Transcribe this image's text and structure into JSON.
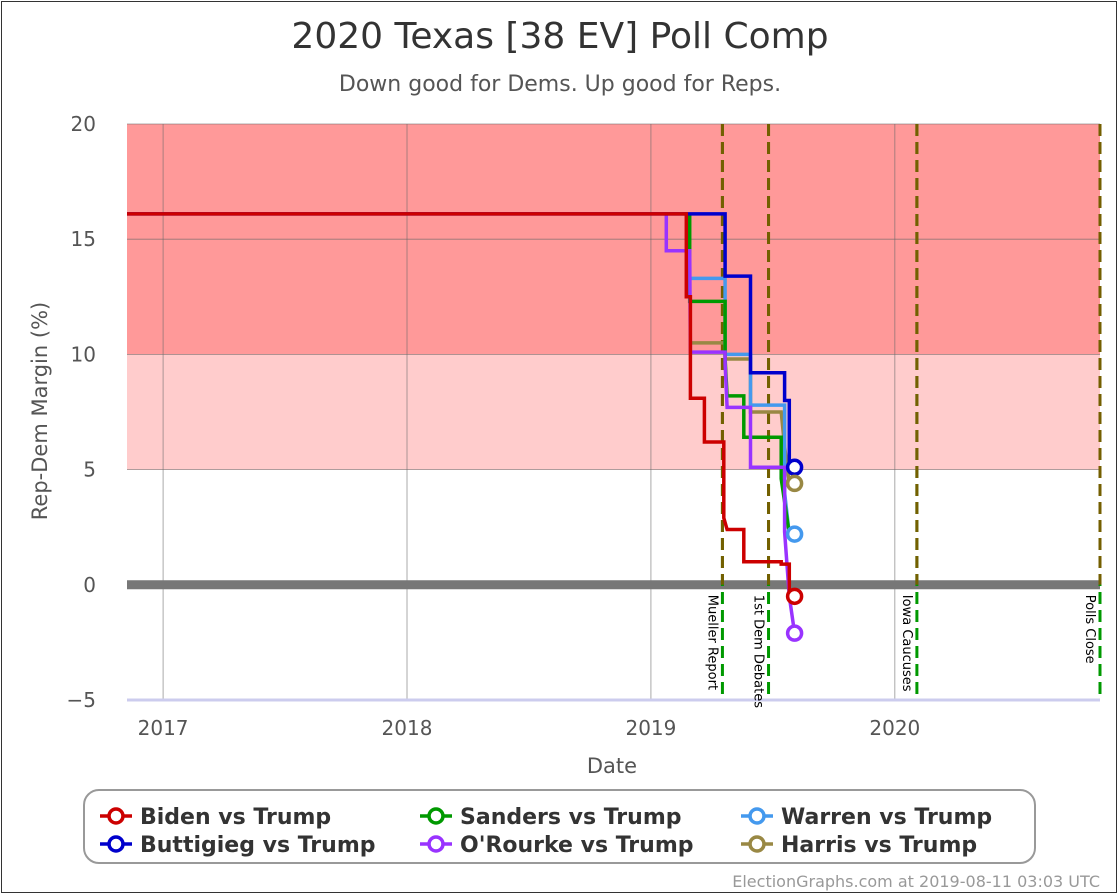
{
  "chart_data": {
    "type": "line",
    "title": "2020 Texas [38 EV] Poll Comp",
    "subtitle": "Down good for Dems. Up good for Reps.",
    "xlabel": "Date",
    "ylabel": "Rep-Dem Margin (%)",
    "xlim": [
      "2016-11-08",
      "2020-11-03"
    ],
    "ylim": [
      -5,
      20
    ],
    "x_ticks": [
      {
        "date": "2017-01-01",
        "label": "2017"
      },
      {
        "date": "2018-01-01",
        "label": "2018"
      },
      {
        "date": "2019-01-01",
        "label": "2019"
      },
      {
        "date": "2020-01-01",
        "label": "2020"
      }
    ],
    "y_ticks": [
      -5,
      0,
      5,
      10,
      15,
      20
    ],
    "bands": [
      {
        "from": 10,
        "to": 20,
        "color": "#ff9999"
      },
      {
        "from": 5,
        "to": 10,
        "color": "#ffcccc"
      }
    ],
    "events": [
      {
        "date": "2019-04-18",
        "label": "Mueller Report"
      },
      {
        "date": "2019-06-26",
        "label": "1st Dem Debates"
      },
      {
        "date": "2020-02-03",
        "label": "Iowa Caucuses"
      },
      {
        "date": "2020-11-03",
        "label": "Polls Close"
      }
    ],
    "series": [
      {
        "name": "Biden vs Trump",
        "color": "#cc0000",
        "points": [
          [
            "2016-11-08",
            16.1
          ],
          [
            "2019-02-23",
            16.1
          ],
          [
            "2019-02-23",
            12.5
          ],
          [
            "2019-03-01",
            12.5
          ],
          [
            "2019-03-01",
            8.1
          ],
          [
            "2019-03-22",
            8.1
          ],
          [
            "2019-03-22",
            6.2
          ],
          [
            "2019-04-20",
            6.2
          ],
          [
            "2019-04-20",
            2.9
          ],
          [
            "2019-04-25",
            2.4
          ],
          [
            "2019-05-20",
            2.4
          ],
          [
            "2019-05-20",
            1.0
          ],
          [
            "2019-07-15",
            1.0
          ],
          [
            "2019-07-15",
            0.9
          ],
          [
            "2019-07-27",
            0.9
          ],
          [
            "2019-07-27",
            -0.5
          ],
          [
            "2019-08-04",
            -0.5
          ]
        ]
      },
      {
        "name": "Sanders vs Trump",
        "color": "#009900",
        "points": [
          [
            "2019-02-28",
            16.1
          ],
          [
            "2019-02-28",
            12.3
          ],
          [
            "2019-04-22",
            12.3
          ],
          [
            "2019-04-22",
            9.8
          ],
          [
            "2019-04-25",
            8.2
          ],
          [
            "2019-05-20",
            8.2
          ],
          [
            "2019-05-20",
            6.4
          ],
          [
            "2019-07-15",
            6.4
          ],
          [
            "2019-07-15",
            4.6
          ],
          [
            "2019-07-24",
            2.8
          ],
          [
            "2019-07-27",
            2.2
          ]
        ]
      },
      {
        "name": "Warren vs Trump",
        "color": "#4499ee",
        "points": [
          [
            "2019-03-01",
            13.3
          ],
          [
            "2019-04-22",
            13.3
          ],
          [
            "2019-04-22",
            10.0
          ],
          [
            "2019-05-30",
            10.0
          ],
          [
            "2019-05-30",
            7.8
          ],
          [
            "2019-07-20",
            7.8
          ],
          [
            "2019-07-20",
            4.0
          ],
          [
            "2019-07-27",
            2.2
          ],
          [
            "2019-08-04",
            2.2
          ]
        ]
      },
      {
        "name": "Buttigieg vs Trump",
        "color": "#0000cc",
        "points": [
          [
            "2016-11-08",
            16.1
          ],
          [
            "2019-04-22",
            16.1
          ],
          [
            "2019-04-22",
            13.4
          ],
          [
            "2019-05-30",
            13.4
          ],
          [
            "2019-05-30",
            9.2
          ],
          [
            "2019-07-20",
            9.2
          ],
          [
            "2019-07-20",
            8.0
          ],
          [
            "2019-07-27",
            8.0
          ],
          [
            "2019-07-27",
            5.1
          ],
          [
            "2019-08-04",
            5.1
          ]
        ]
      },
      {
        "name": "O'Rourke vs Trump",
        "color": "#9933ff",
        "points": [
          [
            "2019-01-24",
            16.1
          ],
          [
            "2019-01-24",
            14.5
          ],
          [
            "2019-02-28",
            14.5
          ],
          [
            "2019-03-01",
            10.1
          ],
          [
            "2019-04-22",
            10.1
          ],
          [
            "2019-04-22",
            9.6
          ],
          [
            "2019-04-25",
            7.7
          ],
          [
            "2019-05-30",
            7.7
          ],
          [
            "2019-05-30",
            5.1
          ],
          [
            "2019-07-20",
            5.1
          ],
          [
            "2019-07-20",
            2.3
          ],
          [
            "2019-07-27",
            -0.5
          ],
          [
            "2019-08-04",
            -2.1
          ]
        ]
      },
      {
        "name": "Harris vs Trump",
        "color": "#998844",
        "points": [
          [
            "2019-03-01",
            10.5
          ],
          [
            "2019-04-22",
            10.5
          ],
          [
            "2019-04-22",
            9.8
          ],
          [
            "2019-05-30",
            9.8
          ],
          [
            "2019-05-30",
            7.5
          ],
          [
            "2019-07-15",
            7.5
          ],
          [
            "2019-07-20",
            6.0
          ],
          [
            "2019-07-27",
            4.4
          ],
          [
            "2019-08-04",
            4.4
          ]
        ]
      }
    ],
    "endpoints": [
      {
        "series": "Buttigieg vs Trump",
        "date": "2019-08-04",
        "value": 5.1
      },
      {
        "series": "Harris vs Trump",
        "date": "2019-08-04",
        "value": 4.4
      },
      {
        "series": "Warren vs Trump",
        "date": "2019-08-04",
        "value": 2.2
      },
      {
        "series": "Biden vs Trump",
        "date": "2019-08-04",
        "value": -0.5
      },
      {
        "series": "O'Rourke vs Trump",
        "date": "2019-08-04",
        "value": -2.1
      }
    ],
    "legend": {
      "placement": "bottom",
      "entries": [
        "Biden vs Trump",
        "Sanders vs Trump",
        "Warren vs Trump",
        "Buttigieg vs Trump",
        "O'Rourke vs Trump",
        "Harris vs Trump"
      ]
    },
    "grid": true
  },
  "footer": "ElectionGraphs.com at 2019-08-11 03:03 UTC"
}
